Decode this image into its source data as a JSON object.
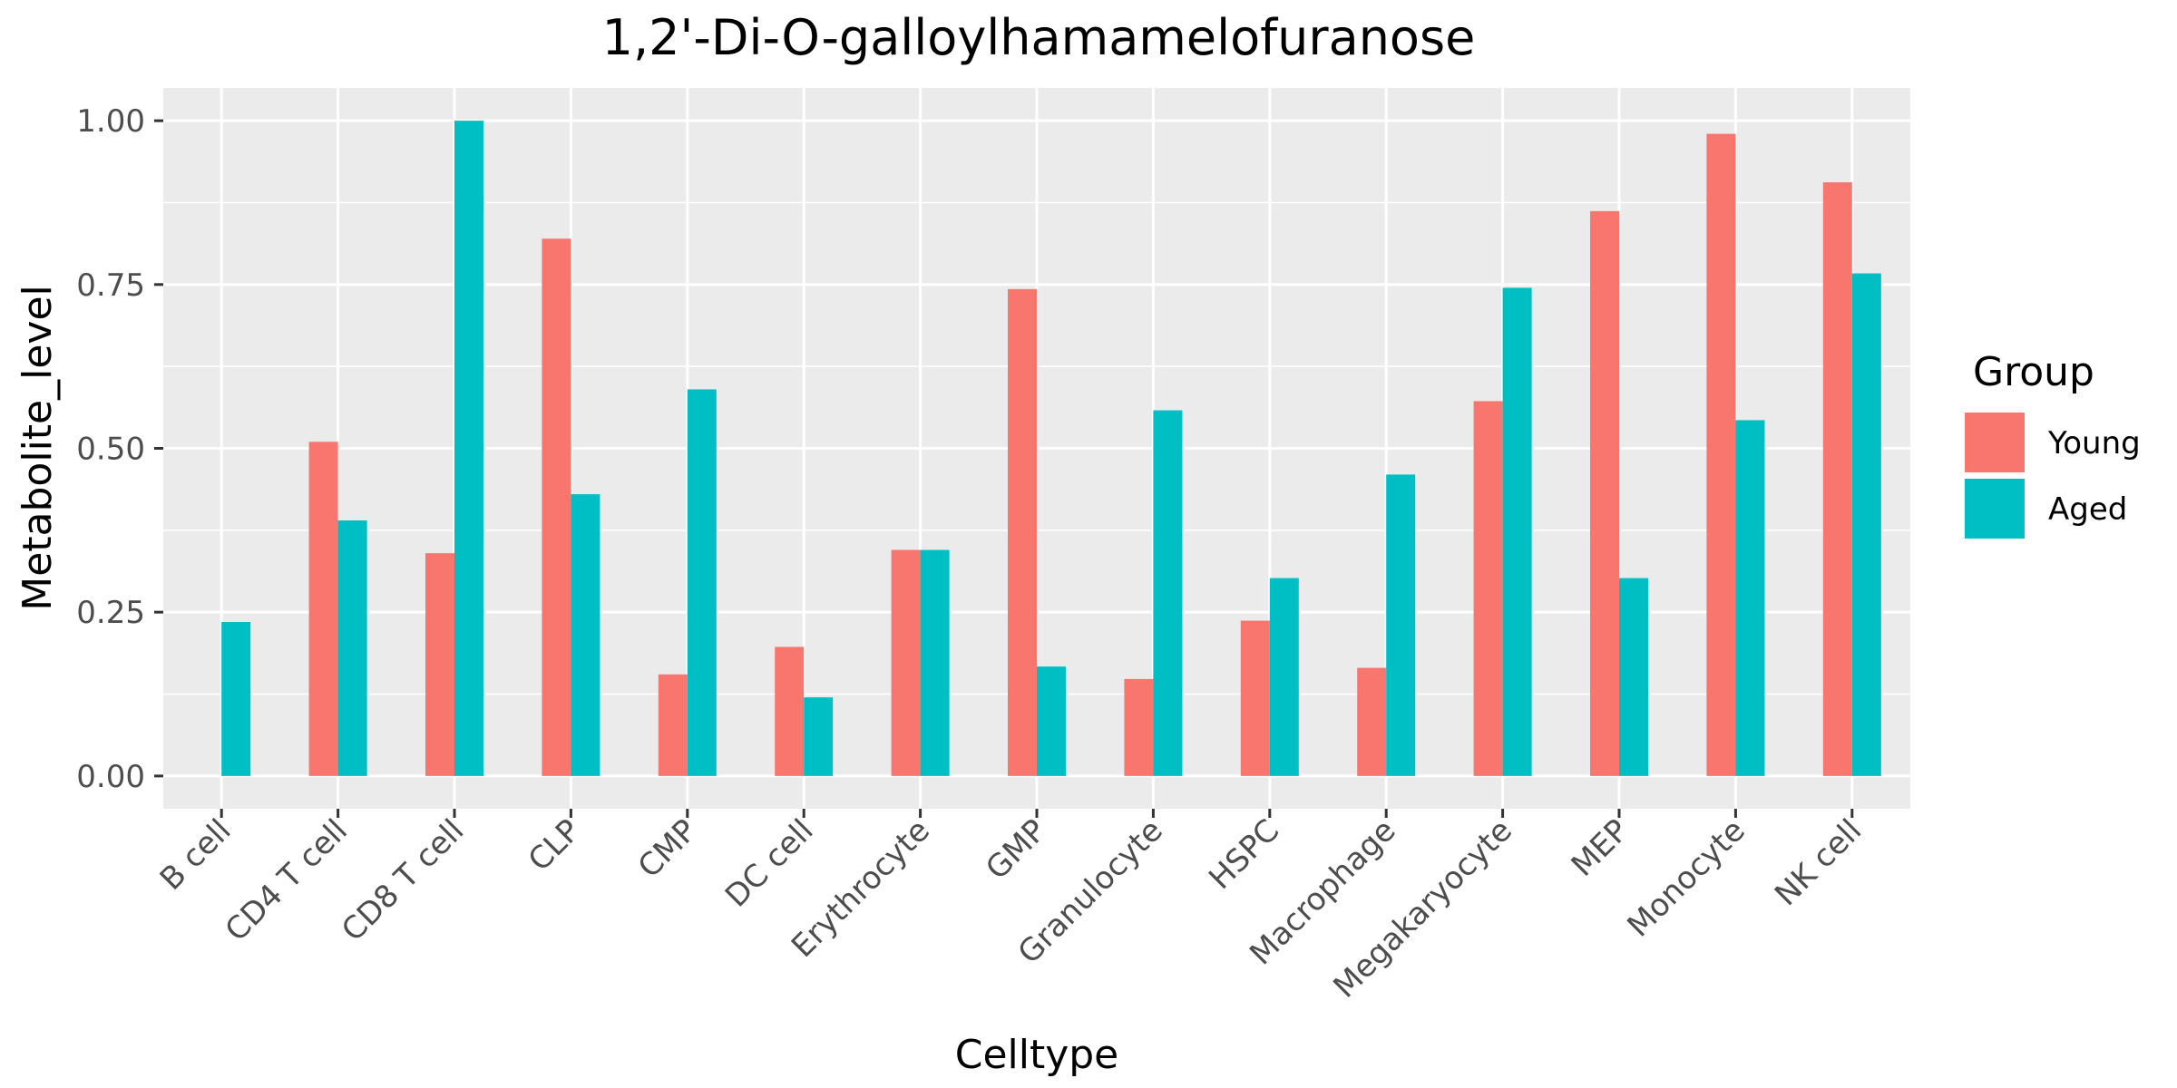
{
  "chart_data": {
    "type": "bar",
    "title": "1,2'-Di-O-galloylhamamelofuranose",
    "xlabel": "Celltype",
    "ylabel": "Metabolite_level",
    "ylim": [
      -0.05,
      1.05
    ],
    "yticks": [
      0.0,
      0.25,
      0.5,
      0.75,
      1.0
    ],
    "ytick_labels": [
      "0.00",
      "0.25",
      "0.50",
      "0.75",
      "1.00"
    ],
    "grid": true,
    "legend": {
      "title": "Group",
      "placement": "right"
    },
    "categories": [
      "B cell",
      "CD4 T cell",
      "CD8 T cell",
      "CLP",
      "CMP",
      "DC cell",
      "Erythrocyte",
      "GMP",
      "Granulocyte",
      "HSPC",
      "Macrophage",
      "Megakaryocyte",
      "MEP",
      "Monocyte",
      "NK cell"
    ],
    "series": [
      {
        "name": "Young",
        "color": "#F8766D",
        "values": [
          0.0,
          0.51,
          0.34,
          0.82,
          0.155,
          0.197,
          0.345,
          0.743,
          0.148,
          0.237,
          0.165,
          0.572,
          0.862,
          0.98,
          0.906
        ]
      },
      {
        "name": "Aged",
        "color": "#00BFC4",
        "values": [
          0.235,
          0.39,
          1.0,
          0.43,
          0.59,
          0.12,
          0.345,
          0.167,
          0.558,
          0.302,
          0.46,
          0.745,
          0.302,
          0.543,
          0.767
        ]
      }
    ]
  }
}
